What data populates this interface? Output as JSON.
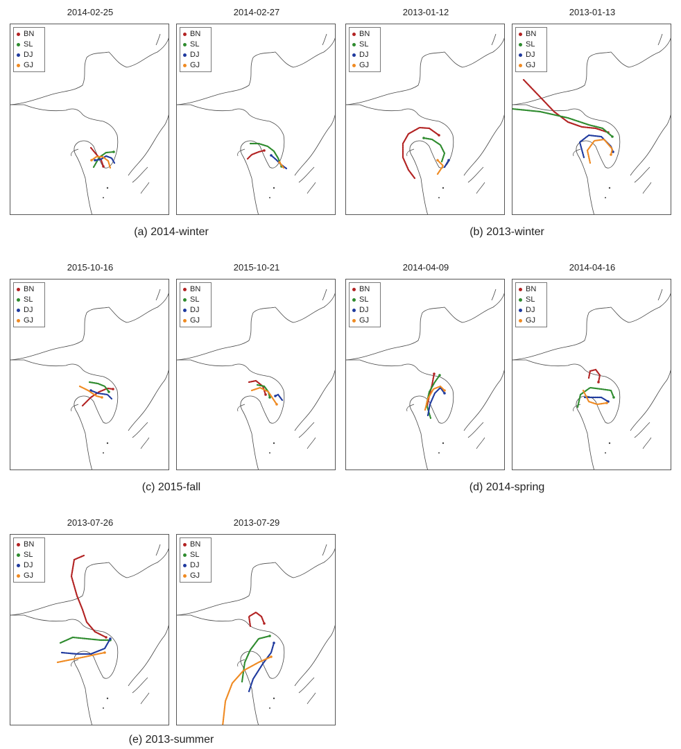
{
  "colors": {
    "BN": "#b22222",
    "SL": "#2e8b2e",
    "DJ": "#1f3a9e",
    "GJ": "#ef8a22"
  },
  "legend": [
    "BN",
    "SL",
    "DJ",
    "GJ"
  ],
  "groups": [
    {
      "caption": "(a) 2014-winter",
      "panels": [
        {
          "date": "2014-02-25",
          "tracks": {
            "BN": [
              [
                116,
                178
              ],
              [
                121,
                184
              ],
              [
                126,
                190
              ],
              [
                131,
                196
              ],
              [
                134,
                205
              ]
            ],
            "SL": [
              [
                120,
                206
              ],
              [
                128,
                192
              ],
              [
                138,
                185
              ],
              [
                149,
                184
              ]
            ],
            "DJ": [
              [
                150,
                200
              ],
              [
                146,
                193
              ],
              [
                138,
                190
              ],
              [
                130,
                195
              ],
              [
                122,
                196
              ]
            ],
            "GJ": [
              [
                144,
                207
              ],
              [
                141,
                197
              ],
              [
                133,
                191
              ],
              [
                124,
                191
              ],
              [
                117,
                196
              ]
            ]
          }
        },
        {
          "date": "2014-02-27",
          "tracks": {
            "BN": [
              [
                102,
                194
              ],
              [
                108,
                188
              ],
              [
                118,
                184
              ],
              [
                126,
                182
              ]
            ],
            "SL": [
              [
                106,
                172
              ],
              [
                118,
                172
              ],
              [
                131,
                176
              ],
              [
                140,
                183
              ],
              [
                146,
                193
              ],
              [
                151,
                205
              ]
            ],
            "DJ": [
              [
                158,
                208
              ],
              [
                150,
                202
              ],
              [
                143,
                195
              ],
              [
                136,
                189
              ]
            ],
            "GJ": [
              [
                154,
                207
              ],
              [
                148,
                199
              ]
            ]
          }
        }
      ]
    },
    {
      "caption": "(b) 2013-winter",
      "panels": [
        {
          "date": "2013-01-12",
          "tracks": {
            "BN": [
              [
                99,
                222
              ],
              [
                90,
                210
              ],
              [
                82,
                192
              ],
              [
                82,
                172
              ],
              [
                90,
                158
              ],
              [
                106,
                149
              ],
              [
                120,
                150
              ],
              [
                134,
                160
              ]
            ],
            "SL": [
              [
                138,
                198
              ],
              [
                142,
                186
              ],
              [
                136,
                174
              ],
              [
                124,
                166
              ],
              [
                112,
                164
              ]
            ],
            "DJ": [
              [
                142,
                206
              ],
              [
                148,
                196
              ]
            ],
            "GJ": [
              [
                132,
                216
              ],
              [
                140,
                204
              ],
              [
                132,
                196
              ]
            ]
          }
        },
        {
          "date": "2013-01-13",
          "tracks": {
            "BN": [
              [
                16,
                80
              ],
              [
                40,
                105
              ],
              [
                60,
                126
              ],
              [
                80,
                141
              ],
              [
                100,
                148
              ],
              [
                120,
                150
              ],
              [
                138,
                156
              ]
            ],
            "SL": [
              [
                0,
                122
              ],
              [
                40,
                126
              ],
              [
                80,
                135
              ],
              [
                110,
                145
              ],
              [
                130,
                150
              ],
              [
                144,
                162
              ]
            ],
            "DJ": [
              [
                103,
                192
              ],
              [
                97,
                170
              ],
              [
                110,
                160
              ],
              [
                128,
                162
              ],
              [
                142,
                176
              ],
              [
                145,
                184
              ]
            ],
            "GJ": [
              [
                112,
                200
              ],
              [
                108,
                182
              ],
              [
                118,
                168
              ],
              [
                132,
                166
              ],
              [
                144,
                180
              ],
              [
                142,
                188
              ]
            ]
          }
        }
      ]
    },
    {
      "caption": "(c) 2015-fall",
      "panels": [
        {
          "date": "2015-10-16",
          "tracks": {
            "BN": [
              [
                104,
                182
              ],
              [
                116,
                170
              ],
              [
                128,
                162
              ],
              [
                140,
                157
              ],
              [
                148,
                158
              ]
            ],
            "SL": [
              [
                114,
                148
              ],
              [
                126,
                150
              ],
              [
                136,
                154
              ],
              [
                142,
                162
              ]
            ],
            "DJ": [
              [
                146,
                172
              ],
              [
                140,
                166
              ],
              [
                126,
                164
              ],
              [
                116,
                160
              ]
            ],
            "GJ": [
              [
                100,
                154
              ],
              [
                112,
                160
              ],
              [
                124,
                168
              ],
              [
                132,
                170
              ]
            ]
          }
        },
        {
          "date": "2015-10-21",
          "tracks": {
            "BN": [
              [
                104,
                148
              ],
              [
                114,
                146
              ],
              [
                124,
                154
              ],
              [
                128,
                166
              ]
            ],
            "SL": [
              [
                116,
                152
              ],
              [
                126,
                154
              ],
              [
                132,
                162
              ],
              [
                134,
                170
              ]
            ],
            "DJ": [
              [
                152,
                174
              ],
              [
                146,
                166
              ],
              [
                142,
                168
              ]
            ],
            "GJ": [
              [
                108,
                160
              ],
              [
                120,
                156
              ],
              [
                132,
                162
              ],
              [
                144,
                180
              ]
            ]
          }
        }
      ]
    },
    {
      "caption": "(d) 2014-spring",
      "panels": [
        {
          "date": "2014-04-09",
          "tracks": {
            "BN": [
              [
                117,
                182
              ],
              [
                120,
                168
              ],
              [
                124,
                152
              ],
              [
                127,
                136
              ]
            ],
            "SL": [
              [
                122,
                200
              ],
              [
                116,
                180
              ],
              [
                120,
                162
              ],
              [
                128,
                148
              ],
              [
                135,
                138
              ]
            ],
            "DJ": [
              [
                118,
                196
              ],
              [
                121,
                180
              ],
              [
                128,
                164
              ],
              [
                136,
                156
              ],
              [
                142,
                164
              ]
            ],
            "GJ": [
              [
                114,
                188
              ],
              [
                118,
                172
              ],
              [
                126,
                158
              ],
              [
                136,
                154
              ],
              [
                142,
                160
              ]
            ]
          }
        },
        {
          "date": "2014-04-16",
          "tracks": {
            "BN": [
              [
                110,
                142
              ],
              [
                112,
                132
              ],
              [
                120,
                130
              ],
              [
                126,
                138
              ],
              [
                124,
                148
              ]
            ],
            "SL": [
              [
                94,
                184
              ],
              [
                98,
                166
              ],
              [
                112,
                156
              ],
              [
                128,
                158
              ],
              [
                142,
                160
              ],
              [
                146,
                170
              ]
            ],
            "DJ": [
              [
                104,
                170
              ],
              [
                114,
                170
              ],
              [
                128,
                170
              ],
              [
                138,
                176
              ]
            ],
            "GJ": [
              [
                102,
                160
              ],
              [
                110,
                176
              ],
              [
                122,
                180
              ],
              [
                136,
                178
              ]
            ]
          }
        }
      ]
    },
    {
      "caption": "(e) 2013-summer",
      "panels": [
        {
          "date": "2013-07-26",
          "tracks": {
            "BN": [
              [
                106,
                30
              ],
              [
                92,
                36
              ],
              [
                88,
                60
              ],
              [
                96,
                88
              ],
              [
                104,
                108
              ],
              [
                110,
                126
              ],
              [
                122,
                140
              ],
              [
                138,
                148
              ]
            ],
            "SL": [
              [
                72,
                156
              ],
              [
                90,
                148
              ],
              [
                110,
                150
              ],
              [
                130,
                152
              ],
              [
                144,
                152
              ]
            ],
            "DJ": [
              [
                74,
                170
              ],
              [
                96,
                172
              ],
              [
                116,
                172
              ],
              [
                136,
                164
              ],
              [
                144,
                150
              ]
            ],
            "GJ": [
              [
                68,
                184
              ],
              [
                88,
                180
              ],
              [
                108,
                176
              ],
              [
                126,
                172
              ],
              [
                136,
                170
              ]
            ]
          }
        },
        {
          "date": "2013-07-29",
          "tracks": {
            "BN": [
              [
                106,
                132
              ],
              [
                104,
                118
              ],
              [
                114,
                112
              ],
              [
                122,
                118
              ],
              [
                126,
                128
              ]
            ],
            "SL": [
              [
                94,
                212
              ],
              [
                98,
                184
              ],
              [
                106,
                166
              ],
              [
                118,
                150
              ],
              [
                134,
                146
              ]
            ],
            "DJ": [
              [
                104,
                226
              ],
              [
                110,
                208
              ],
              [
                124,
                186
              ],
              [
                136,
                170
              ],
              [
                140,
                156
              ]
            ],
            "GJ": [
              [
                66,
                276
              ],
              [
                70,
                240
              ],
              [
                80,
                214
              ],
              [
                96,
                196
              ],
              [
                118,
                184
              ],
              [
                136,
                176
              ]
            ]
          }
        }
      ]
    }
  ]
}
